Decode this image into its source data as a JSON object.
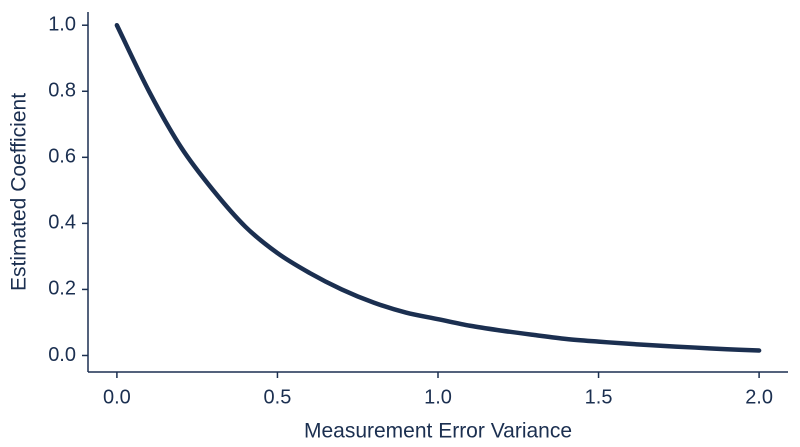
{
  "chart_data": {
    "type": "line",
    "title": "",
    "xlabel": "Measurement Error Variance",
    "ylabel": "Estimated Coefficient",
    "xlim": [
      -0.09,
      2.09
    ],
    "ylim": [
      -0.05,
      1.04
    ],
    "x_ticks": [
      0.0,
      0.5,
      1.0,
      1.5,
      2.0
    ],
    "x_tick_labels": [
      "0.0",
      "0.5",
      "1.0",
      "1.5",
      "2.0"
    ],
    "y_ticks": [
      0.0,
      0.2,
      0.4,
      0.6,
      0.8,
      1.0
    ],
    "y_tick_labels": [
      "0.0",
      "0.2",
      "0.4",
      "0.6",
      "0.8",
      "1.0"
    ],
    "grid": false,
    "legend": "none",
    "line_color": "#1b2f50",
    "axis_color": "#1b2f50",
    "text_color": "#1b2f50",
    "series": [
      {
        "x": [
          0.0,
          0.1,
          0.2,
          0.3,
          0.4,
          0.5,
          0.6,
          0.7,
          0.8,
          0.9,
          1.0,
          1.1,
          1.2,
          1.3,
          1.4,
          1.5,
          1.6,
          1.7,
          1.8,
          1.9,
          2.0
        ],
        "values": [
          1.0,
          0.8,
          0.63,
          0.5,
          0.39,
          0.31,
          0.25,
          0.2,
          0.16,
          0.13,
          0.11,
          0.09,
          0.075,
          0.062,
          0.05,
          0.042,
          0.035,
          0.029,
          0.024,
          0.019,
          0.015
        ]
      }
    ]
  }
}
